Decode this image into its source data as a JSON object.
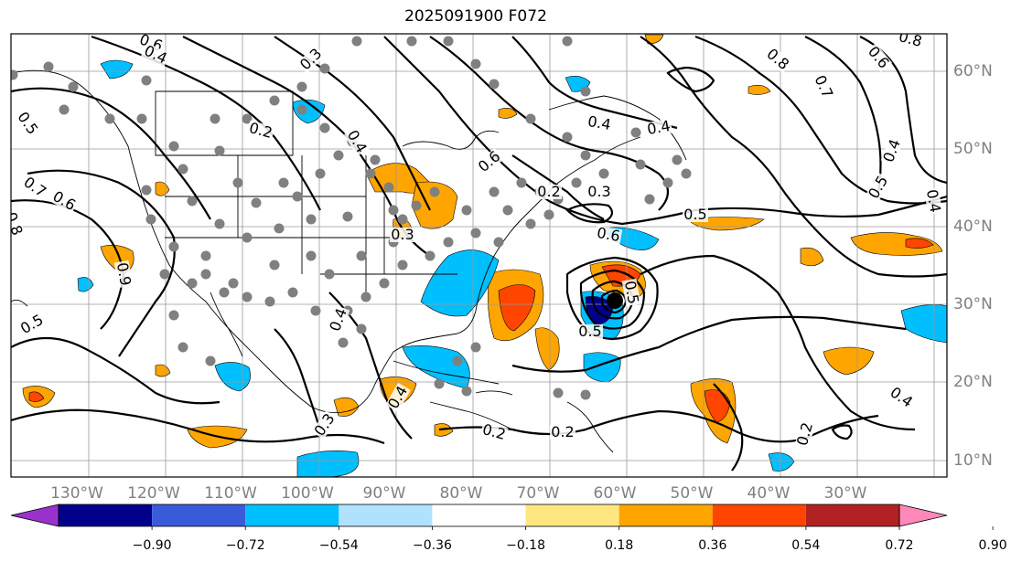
{
  "title": "2025091900 F072",
  "colors": {
    "neg_090": "#9932cc",
    "neg_072": "#00008b",
    "neg_054": "#3a5bd9",
    "neg_036": "#00bfff",
    "neg_018": "#b0e2ff",
    "pos_018": "#ffe680",
    "pos_036": "#ffa500",
    "pos_054": "#ff4500",
    "pos_072": "#b22222",
    "pos_090": "#ff88bb",
    "grid": "#9a9a9a",
    "station": "#808080"
  },
  "chart_data": {
    "type": "contour-map",
    "projection": "map",
    "lon_ticks": [
      "130°W",
      "120°W",
      "110°W",
      "100°W",
      "90°W",
      "80°W",
      "70°W",
      "60°W",
      "50°W",
      "40°W",
      "30°W"
    ],
    "lat_ticks": [
      "60°N",
      "50°N",
      "40°N",
      "30°N",
      "20°N",
      "10°N"
    ],
    "colorbar": {
      "extend": "both",
      "bounds": [
        "−0.90",
        "−0.72",
        "−0.54",
        "−0.36",
        "−0.18",
        "0.18",
        "0.36",
        "0.54",
        "0.72",
        "0.90"
      ],
      "colors": [
        "#9932cc",
        "#00008b",
        "#3a5bd9",
        "#00bfff",
        "#b0e2ff",
        "#ffffff",
        "#ffe680",
        "#ffa500",
        "#ff4500",
        "#b22222",
        "#ff88bb"
      ]
    },
    "contour_labels": [
      "0.6",
      "0.4",
      "0.3",
      "0.2",
      "0.4",
      "0.5",
      "0.7",
      "0.6",
      "0.8",
      "0.9",
      "0.5",
      "0.6",
      "0.3",
      "0.4",
      "0.4",
      "0.2",
      "0.3",
      "0.5",
      "0.6",
      "0.5",
      "0.5",
      "0.4",
      "0.4",
      "0.2",
      "0.2",
      "0.3",
      "0.2",
      "0.8",
      "0.6",
      "0.7",
      "0.4",
      "0.5",
      "0.4",
      "0.4",
      "0.8"
    ],
    "vortex_center": {
      "lon": "63°W",
      "lat": "30.5°N"
    }
  }
}
